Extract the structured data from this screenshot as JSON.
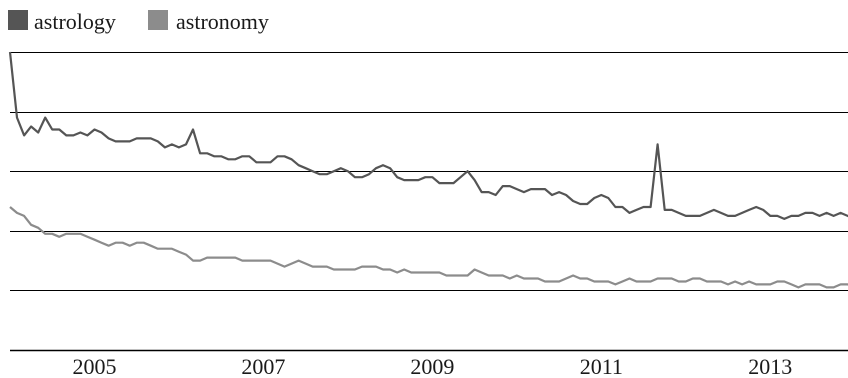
{
  "chart_data": {
    "type": "line",
    "title": "",
    "xlabel": "",
    "ylabel": "",
    "x_start": 2004.0,
    "x_step": 0.08333,
    "xlim": [
      2004.0,
      2013.92
    ],
    "ylim": [
      0,
      100
    ],
    "x_ticks": [
      2005,
      2007,
      2009,
      2011,
      2013
    ],
    "x_tick_labels": [
      "2005",
      "2007",
      "2009",
      "2011",
      "2013"
    ],
    "y_gridlines": [
      0,
      20,
      40,
      60,
      80,
      100
    ],
    "legend_position": "top-left",
    "series": [
      {
        "name": "astrology",
        "color": "#555555",
        "values": [
          100,
          78,
          72,
          75,
          73,
          78,
          74,
          74,
          72,
          72,
          73,
          72,
          74,
          73,
          71,
          70,
          70,
          70,
          71,
          71,
          71,
          70,
          68,
          69,
          68,
          69,
          74,
          66,
          66,
          65,
          65,
          64,
          64,
          65,
          65,
          63,
          63,
          63,
          65,
          65,
          64,
          62,
          61,
          60,
          59,
          59,
          60,
          61,
          60,
          58,
          58,
          59,
          61,
          62,
          61,
          58,
          57,
          57,
          57,
          58,
          58,
          56,
          56,
          56,
          58,
          60,
          57,
          53,
          53,
          52,
          55,
          55,
          54,
          53,
          54,
          54,
          54,
          52,
          53,
          52,
          50,
          49,
          49,
          51,
          52,
          51,
          48,
          48,
          46,
          47,
          48,
          48,
          69,
          47,
          47,
          46,
          45,
          45,
          45,
          46,
          47,
          46,
          45,
          45,
          46,
          47,
          48,
          47,
          45,
          45,
          44,
          45,
          45,
          46,
          46,
          45,
          46,
          45,
          46,
          45,
          44,
          44,
          44,
          44,
          44,
          45,
          44,
          44,
          45
        ]
      },
      {
        "name": "astronomy",
        "color": "#8c8c8c",
        "values": [
          48,
          46,
          45,
          42,
          41,
          39,
          39,
          38,
          39,
          39,
          39,
          38,
          37,
          36,
          35,
          36,
          36,
          35,
          36,
          36,
          35,
          34,
          34,
          34,
          33,
          32,
          30,
          30,
          31,
          31,
          31,
          31,
          31,
          30,
          30,
          30,
          30,
          30,
          29,
          28,
          29,
          30,
          29,
          28,
          28,
          28,
          27,
          27,
          27,
          27,
          28,
          28,
          28,
          27,
          27,
          26,
          27,
          26,
          26,
          26,
          26,
          26,
          25,
          25,
          25,
          25,
          27,
          26,
          25,
          25,
          25,
          24,
          25,
          24,
          24,
          24,
          23,
          23,
          23,
          24,
          25,
          24,
          24,
          23,
          23,
          23,
          22,
          23,
          24,
          23,
          23,
          23,
          24,
          24,
          24,
          23,
          23,
          24,
          24,
          23,
          23,
          23,
          22,
          23,
          22,
          23,
          22,
          22,
          22,
          23,
          23,
          22,
          21,
          22,
          22,
          22,
          21,
          21,
          22,
          22,
          21,
          21,
          21,
          21,
          21,
          21,
          21,
          21,
          20
        ]
      }
    ]
  }
}
